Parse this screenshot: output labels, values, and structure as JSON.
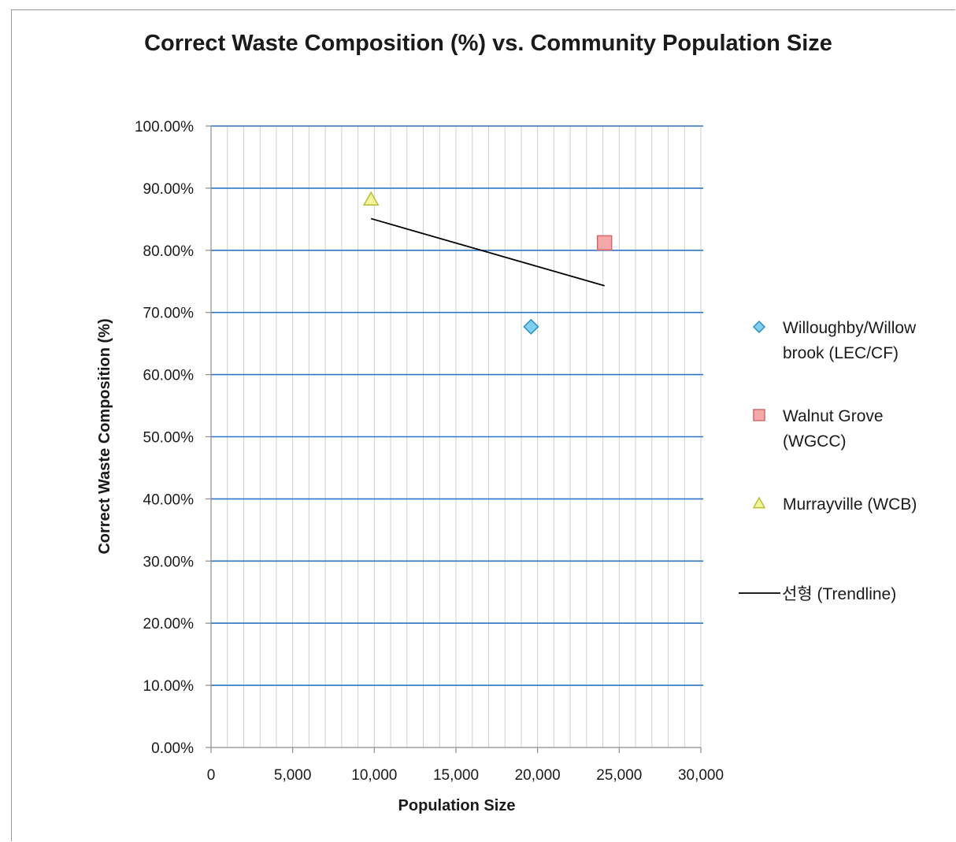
{
  "chart_data": {
    "type": "scatter",
    "title": "Correct Waste Composition (%) vs. Community Population Size",
    "xlabel": "Population Size",
    "ylabel": "Correct Waste Composition (%)",
    "xlim": [
      0,
      30000
    ],
    "ylim": [
      0,
      1
    ],
    "x_ticks": [
      "0",
      "5,000",
      "10,000",
      "15,000",
      "20,000",
      "25,000",
      "30,000"
    ],
    "y_ticks": [
      "0.00%",
      "10.00%",
      "20.00%",
      "30.00%",
      "40.00%",
      "50.00%",
      "60.00%",
      "70.00%",
      "80.00%",
      "90.00%",
      "100.00%"
    ],
    "grid": {
      "major_y": true,
      "minor_x": true,
      "major_y_color": "#2e75c4",
      "minor_x_color": "#cfcfcf"
    },
    "legend_position": "right",
    "series": [
      {
        "name_lines": [
          "Willoughby/Willow",
          "brook (LEC/CF)"
        ],
        "marker": "diamond",
        "fill": "#7fd0ee",
        "stroke": "#2a8fc4",
        "points": [
          {
            "x": 19600,
            "y": 0.677
          }
        ]
      },
      {
        "name_lines": [
          "Walnut Grove",
          "(WGCC)"
        ],
        "marker": "square",
        "fill": "#f4a8a8",
        "stroke": "#d46868",
        "points": [
          {
            "x": 24100,
            "y": 0.812
          }
        ]
      },
      {
        "name_lines": [
          "Murrayville (WCB)"
        ],
        "marker": "triangle",
        "fill": "#f2f59a",
        "stroke": "#b8bc3a",
        "points": [
          {
            "x": 9800,
            "y": 0.882
          }
        ]
      }
    ],
    "trendline": {
      "name": "선형 (Trendline)",
      "color": "#000000",
      "points": [
        {
          "x": 9800,
          "y": 0.851
        },
        {
          "x": 24100,
          "y": 0.743
        }
      ]
    }
  }
}
